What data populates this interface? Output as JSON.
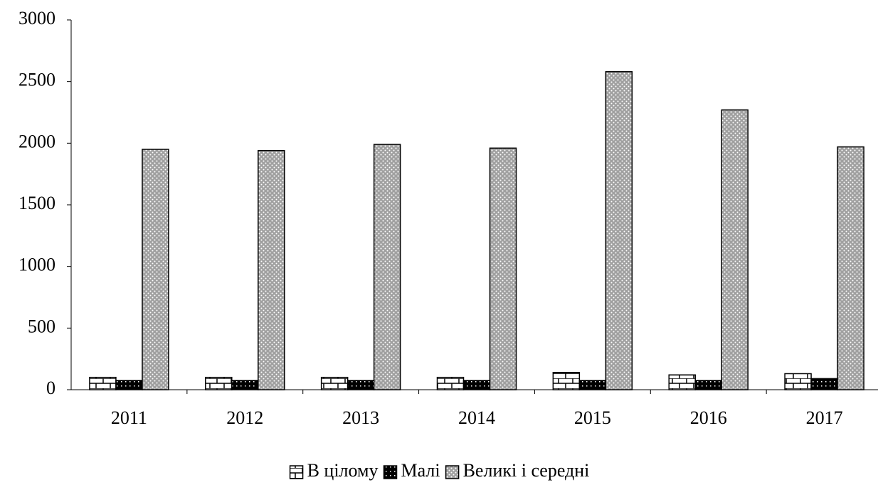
{
  "chart_data": {
    "type": "bar",
    "categories": [
      "2011",
      "2012",
      "2013",
      "2014",
      "2015",
      "2016",
      "2017"
    ],
    "series": [
      {
        "name": "В цілому",
        "color": "#ffffff",
        "values": [
          100,
          100,
          100,
          100,
          140,
          120,
          130
        ]
      },
      {
        "name": "Малі",
        "color": "#000000",
        "values": [
          75,
          75,
          75,
          75,
          75,
          75,
          90
        ]
      },
      {
        "name": "Великі і середні",
        "color": "#a0a0a0",
        "values": [
          1950,
          1940,
          1990,
          1960,
          2580,
          2270,
          1970
        ]
      }
    ],
    "ylim": [
      0,
      3000
    ],
    "yticks": [
      0,
      500,
      1000,
      1500,
      2000,
      2500,
      3000
    ],
    "grid": false
  }
}
